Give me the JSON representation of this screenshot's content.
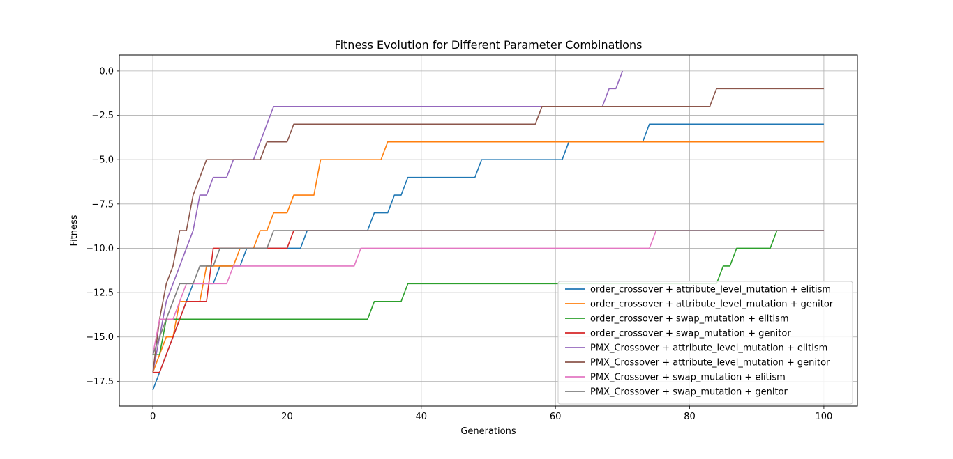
{
  "chart_data": {
    "type": "line",
    "title": "Fitness Evolution for Different Parameter Combinations",
    "xlabel": "Generations",
    "ylabel": "Fitness",
    "xlim": [
      -5,
      105
    ],
    "ylim": [
      -18.9,
      0.9
    ],
    "xticks": [
      0,
      20,
      40,
      60,
      80,
      100
    ],
    "yticks": [
      0.0,
      -2.5,
      -5.0,
      -7.5,
      -10.0,
      -12.5,
      -15.0,
      -17.5
    ],
    "xtick_labels": [
      "0",
      "20",
      "40",
      "60",
      "80",
      "100"
    ],
    "ytick_labels": [
      "0.0",
      "−2.5",
      "−5.0",
      "−7.5",
      "−10.0",
      "−12.5",
      "−15.0",
      "−17.5"
    ],
    "grid": true,
    "legend_position": "lower-right",
    "series": [
      {
        "name": "order_crossover + attribute_level_mutation + elitism",
        "color": "#1f77b4",
        "points": [
          [
            0,
            -18
          ],
          [
            1,
            -17
          ],
          [
            2,
            -16
          ],
          [
            3,
            -15
          ],
          [
            4,
            -14
          ],
          [
            5,
            -13
          ],
          [
            6,
            -12
          ],
          [
            7,
            -12
          ],
          [
            8,
            -12
          ],
          [
            9,
            -12
          ],
          [
            10,
            -11
          ],
          [
            13,
            -11
          ],
          [
            14,
            -10
          ],
          [
            22,
            -10
          ],
          [
            23,
            -9
          ],
          [
            32,
            -9
          ],
          [
            33,
            -8
          ],
          [
            35,
            -8
          ],
          [
            36,
            -7
          ],
          [
            37,
            -7
          ],
          [
            38,
            -6
          ],
          [
            48,
            -6
          ],
          [
            49,
            -5
          ],
          [
            61,
            -5
          ],
          [
            62,
            -4
          ],
          [
            73,
            -4
          ],
          [
            74,
            -3
          ],
          [
            100,
            -3
          ]
        ]
      },
      {
        "name": "order_crossover + attribute_level_mutation + genitor",
        "color": "#ff7f0e",
        "points": [
          [
            0,
            -17
          ],
          [
            1,
            -16
          ],
          [
            2,
            -15
          ],
          [
            3,
            -15
          ],
          [
            4,
            -13
          ],
          [
            7,
            -13
          ],
          [
            8,
            -11
          ],
          [
            12,
            -11
          ],
          [
            13,
            -10
          ],
          [
            15,
            -10
          ],
          [
            16,
            -9
          ],
          [
            17,
            -9
          ],
          [
            18,
            -8
          ],
          [
            20,
            -8
          ],
          [
            21,
            -7
          ],
          [
            24,
            -7
          ],
          [
            25,
            -5
          ],
          [
            34,
            -5
          ],
          [
            35,
            -4
          ],
          [
            100,
            -4
          ]
        ]
      },
      {
        "name": "order_crossover + swap_mutation + elitism",
        "color": "#2ca02c",
        "points": [
          [
            0,
            -16
          ],
          [
            1,
            -16
          ],
          [
            2,
            -14
          ],
          [
            32,
            -14
          ],
          [
            33,
            -13
          ],
          [
            37,
            -13
          ],
          [
            38,
            -12
          ],
          [
            83,
            -12
          ],
          [
            84,
            -12
          ],
          [
            85,
            -11
          ],
          [
            86,
            -11
          ],
          [
            87,
            -10
          ],
          [
            92,
            -10
          ],
          [
            93,
            -9
          ],
          [
            100,
            -9
          ]
        ]
      },
      {
        "name": "order_crossover + swap_mutation + genitor",
        "color": "#d62728",
        "points": [
          [
            0,
            -17
          ],
          [
            1,
            -17
          ],
          [
            2,
            -16
          ],
          [
            3,
            -15
          ],
          [
            4,
            -14
          ],
          [
            5,
            -13
          ],
          [
            8,
            -13
          ],
          [
            9,
            -10
          ],
          [
            20,
            -10
          ],
          [
            21,
            -9
          ],
          [
            100,
            -9
          ]
        ]
      },
      {
        "name": "PMX_Crossover + attribute_level_mutation + elitism",
        "color": "#9467bd",
        "points": [
          [
            0,
            -17
          ],
          [
            1,
            -15
          ],
          [
            2,
            -13
          ],
          [
            3,
            -12
          ],
          [
            4,
            -11
          ],
          [
            5,
            -10
          ],
          [
            6,
            -9
          ],
          [
            7,
            -7
          ],
          [
            8,
            -7
          ],
          [
            9,
            -6
          ],
          [
            11,
            -6
          ],
          [
            12,
            -5
          ],
          [
            15,
            -5
          ],
          [
            16,
            -4
          ],
          [
            17,
            -3
          ],
          [
            18,
            -2
          ],
          [
            67,
            -2
          ],
          [
            68,
            -1
          ],
          [
            69,
            -1
          ],
          [
            70,
            0
          ]
        ]
      },
      {
        "name": "PMX_Crossover + attribute_level_mutation + genitor",
        "color": "#8c564b",
        "points": [
          [
            0,
            -17
          ],
          [
            1,
            -14
          ],
          [
            2,
            -12
          ],
          [
            3,
            -11
          ],
          [
            4,
            -9
          ],
          [
            5,
            -9
          ],
          [
            6,
            -7
          ],
          [
            7,
            -6
          ],
          [
            8,
            -5
          ],
          [
            16,
            -5
          ],
          [
            17,
            -4
          ],
          [
            20,
            -4
          ],
          [
            21,
            -3
          ],
          [
            57,
            -3
          ],
          [
            58,
            -2
          ],
          [
            83,
            -2
          ],
          [
            84,
            -1
          ],
          [
            100,
            -1
          ]
        ]
      },
      {
        "name": "PMX_Crossover + swap_mutation + elitism",
        "color": "#e377c2",
        "points": [
          [
            0,
            -16
          ],
          [
            1,
            -14
          ],
          [
            2,
            -14
          ],
          [
            3,
            -14
          ],
          [
            4,
            -13
          ],
          [
            5,
            -12
          ],
          [
            10,
            -12
          ],
          [
            11,
            -12
          ],
          [
            12,
            -11
          ],
          [
            30,
            -11
          ],
          [
            31,
            -10
          ],
          [
            74,
            -10
          ],
          [
            75,
            -9
          ],
          [
            100,
            -9
          ]
        ]
      },
      {
        "name": "PMX_Crossover + swap_mutation + genitor",
        "color": "#7f7f7f",
        "points": [
          [
            0,
            -16
          ],
          [
            1,
            -15
          ],
          [
            2,
            -14
          ],
          [
            3,
            -13
          ],
          [
            4,
            -12
          ],
          [
            6,
            -12
          ],
          [
            7,
            -11
          ],
          [
            9,
            -11
          ],
          [
            10,
            -10
          ],
          [
            17,
            -10
          ],
          [
            18,
            -9
          ],
          [
            100,
            -9
          ]
        ]
      }
    ]
  }
}
